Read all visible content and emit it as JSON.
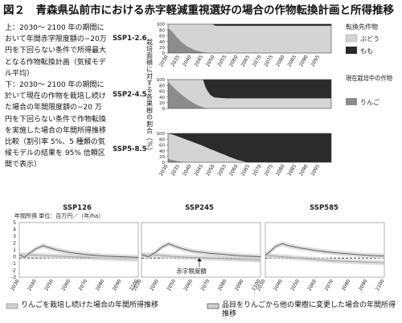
{
  "figure": {
    "title": "図２　青森県弘前市における赤字軽減重視選好の場合の作物転換計画と所得推移",
    "caption_top": "上：2030～ 2100 年の期間において年間赤字限度額の−20万円を下回らない条件で所得最大となる作物転換計画（気候モデル平均）",
    "caption_bottom": "下：2030～ 2100 年の期間に於いて現在の作物を栽培し続けた場合の年間限度額の−20 万円を下回らない条件で作物転換を実施した場合の年間所得推移比較（割引率 5%、5 種類の気候モデルの結果を 95% 信頼区間で表示）"
  },
  "colors": {
    "apple": "#8c8c8c",
    "grape": "#d4d4d4",
    "peach": "#2b2b2b",
    "band": "#cfcfcf"
  },
  "legend": {
    "convert_title": "転換先作物",
    "grape": "ぶどう",
    "peach": "もも",
    "current_title": "現在栽培中の作物",
    "apple": "りんご"
  },
  "chart_data": [
    {
      "type": "area",
      "name": "SSP1-2.6",
      "ylabel": "栽培面積に対する各果樹の割合（%）",
      "x": [
        2030,
        2100
      ],
      "xticks": [
        2030,
        2035,
        2040,
        2045,
        2050,
        2055,
        2060,
        2065,
        2070,
        2075,
        2080,
        2085,
        2090,
        2095
      ],
      "yticks": [
        0,
        20,
        40,
        60,
        80,
        100
      ],
      "ylim": [
        0,
        100
      ],
      "apple_pct": [
        [
          2030,
          85
        ],
        [
          2031,
          80
        ],
        [
          2032,
          72
        ],
        [
          2033,
          62
        ],
        [
          2034,
          52
        ],
        [
          2035,
          44
        ],
        [
          2036,
          36
        ],
        [
          2037,
          30
        ],
        [
          2038,
          24
        ],
        [
          2039,
          20
        ],
        [
          2040,
          16
        ],
        [
          2041,
          12
        ],
        [
          2042,
          9
        ],
        [
          2043,
          7
        ],
        [
          2044,
          5
        ],
        [
          2045,
          3
        ],
        [
          2046,
          2
        ],
        [
          2047,
          0
        ]
      ],
      "peach_pct": [
        [
          2030,
          0
        ],
        [
          2049,
          0
        ],
        [
          2050,
          5
        ],
        [
          2051,
          6
        ],
        [
          2100,
          6
        ]
      ]
    },
    {
      "type": "area",
      "name": "SSP2-4.5",
      "x": [
        2030,
        2100
      ],
      "yticks": [
        0,
        20,
        40,
        60,
        80,
        100
      ],
      "ylim": [
        0,
        100
      ],
      "apple_pct": [
        [
          2030,
          90
        ],
        [
          2031,
          84
        ],
        [
          2032,
          76
        ],
        [
          2033,
          68
        ],
        [
          2034,
          60
        ],
        [
          2035,
          53
        ],
        [
          2036,
          46
        ],
        [
          2037,
          40
        ],
        [
          2038,
          34
        ],
        [
          2039,
          28
        ],
        [
          2040,
          23
        ],
        [
          2041,
          18
        ],
        [
          2042,
          14
        ],
        [
          2043,
          10
        ],
        [
          2044,
          7
        ],
        [
          2045,
          4
        ],
        [
          2046,
          2
        ],
        [
          2047,
          0
        ]
      ],
      "peach_pct": [
        [
          2030,
          0
        ],
        [
          2045,
          0
        ],
        [
          2046,
          25
        ],
        [
          2047,
          40
        ],
        [
          2048,
          52
        ],
        [
          2049,
          58
        ],
        [
          2050,
          62
        ],
        [
          2055,
          65
        ],
        [
          2100,
          65
        ]
      ]
    },
    {
      "type": "area",
      "name": "SSP5-8.5",
      "x": [
        2030,
        2100
      ],
      "xticks": [
        2030,
        2035,
        2040,
        2045,
        2050,
        2055,
        2060,
        2065,
        2070,
        2075,
        2080,
        2085,
        2090,
        2095
      ],
      "yticks": [
        0,
        20,
        40,
        60,
        80,
        100
      ],
      "ylim": [
        0,
        100
      ],
      "apple_pct": [
        [
          2030,
          12
        ],
        [
          2031,
          10
        ],
        [
          2032,
          8
        ],
        [
          2033,
          6
        ],
        [
          2034,
          4
        ],
        [
          2035,
          3
        ],
        [
          2036,
          2
        ],
        [
          2037,
          0
        ]
      ],
      "peach_pct": [
        [
          2030,
          0
        ],
        [
          2032,
          4
        ],
        [
          2034,
          10
        ],
        [
          2036,
          16
        ],
        [
          2038,
          22
        ],
        [
          2040,
          28
        ],
        [
          2042,
          34
        ],
        [
          2044,
          40
        ],
        [
          2046,
          47
        ],
        [
          2048,
          54
        ],
        [
          2050,
          60
        ],
        [
          2052,
          67
        ],
        [
          2054,
          73
        ],
        [
          2056,
          80
        ],
        [
          2058,
          86
        ],
        [
          2060,
          92
        ],
        [
          2062,
          96
        ],
        [
          2064,
          100
        ],
        [
          2100,
          100
        ]
      ]
    },
    {
      "type": "line",
      "name": "SSP126",
      "ylabel": "年間所得 単位：百万円／（年/ha）",
      "ylim": [
        -3,
        5
      ],
      "yticks": [
        -3,
        -2,
        -1,
        0,
        1,
        2,
        3,
        4,
        5
      ],
      "xticks": [
        2030,
        2040,
        2050,
        2060,
        2070,
        2080,
        2090,
        2100
      ],
      "limit_value": -0.2,
      "limit_label": "赤字限度額",
      "keep_apple": [
        [
          2030,
          0.3
        ],
        [
          2040,
          0.2
        ],
        [
          2050,
          0.1
        ],
        [
          2060,
          0.0
        ],
        [
          2070,
          -0.1
        ],
        [
          2080,
          -0.2
        ],
        [
          2090,
          -0.3
        ],
        [
          2100,
          -0.4
        ]
      ],
      "converted": [
        [
          2030,
          0.3
        ],
        [
          2033,
          -0.1
        ],
        [
          2036,
          0.5
        ],
        [
          2040,
          1.2
        ],
        [
          2044,
          1.6
        ],
        [
          2048,
          1.3
        ],
        [
          2052,
          1.0
        ],
        [
          2060,
          0.6
        ],
        [
          2070,
          0.3
        ],
        [
          2080,
          0.1
        ],
        [
          2090,
          0.0
        ],
        [
          2100,
          -0.1
        ]
      ]
    },
    {
      "type": "line",
      "name": "SSP245",
      "ylim": [
        -3,
        5
      ],
      "yticks": [
        -3,
        -2,
        -1,
        0,
        1,
        2,
        3,
        4,
        5
      ],
      "xticks": [
        2030,
        2040,
        2050,
        2060,
        2070,
        2080,
        2090,
        2100
      ],
      "limit_value": -0.2,
      "keep_apple": [
        [
          2030,
          0.3
        ],
        [
          2040,
          0.2
        ],
        [
          2050,
          0.0
        ],
        [
          2060,
          -0.1
        ],
        [
          2070,
          -0.2
        ],
        [
          2080,
          -0.3
        ],
        [
          2090,
          -0.4
        ],
        [
          2100,
          -0.5
        ]
      ],
      "converted": [
        [
          2030,
          0.3
        ],
        [
          2034,
          0.0
        ],
        [
          2038,
          0.6
        ],
        [
          2042,
          1.4
        ],
        [
          2046,
          1.9
        ],
        [
          2050,
          1.5
        ],
        [
          2055,
          1.1
        ],
        [
          2060,
          0.8
        ],
        [
          2070,
          0.5
        ],
        [
          2080,
          0.3
        ],
        [
          2090,
          0.1
        ],
        [
          2100,
          0.0
        ]
      ]
    },
    {
      "type": "line",
      "name": "SSP585",
      "ylim": [
        -3,
        5
      ],
      "yticks": [
        -3,
        -2,
        -1,
        0,
        1,
        2,
        3,
        4,
        5
      ],
      "xticks": [
        2030,
        2040,
        2050,
        2060,
        2070,
        2080,
        2090,
        2100
      ],
      "limit_value": -0.2,
      "keep_apple": [
        [
          2030,
          0.2
        ],
        [
          2040,
          0.0
        ],
        [
          2050,
          -0.2
        ],
        [
          2060,
          -0.4
        ],
        [
          2070,
          -0.6
        ],
        [
          2080,
          -0.7
        ],
        [
          2090,
          -0.8
        ],
        [
          2100,
          -0.9
        ]
      ],
      "converted": [
        [
          2030,
          0.2
        ],
        [
          2033,
          0.8
        ],
        [
          2036,
          1.5
        ],
        [
          2040,
          1.9
        ],
        [
          2044,
          1.6
        ],
        [
          2050,
          1.3
        ],
        [
          2060,
          0.9
        ],
        [
          2070,
          0.6
        ],
        [
          2080,
          0.4
        ],
        [
          2090,
          0.2
        ],
        [
          2100,
          0.1
        ]
      ]
    }
  ],
  "bottom_legend": {
    "keep_label": "りんごを栽培し続けた場合の年間所得推移",
    "convert_label": "品目をりんごから他の果樹に変更した場合の年間所得推移"
  }
}
